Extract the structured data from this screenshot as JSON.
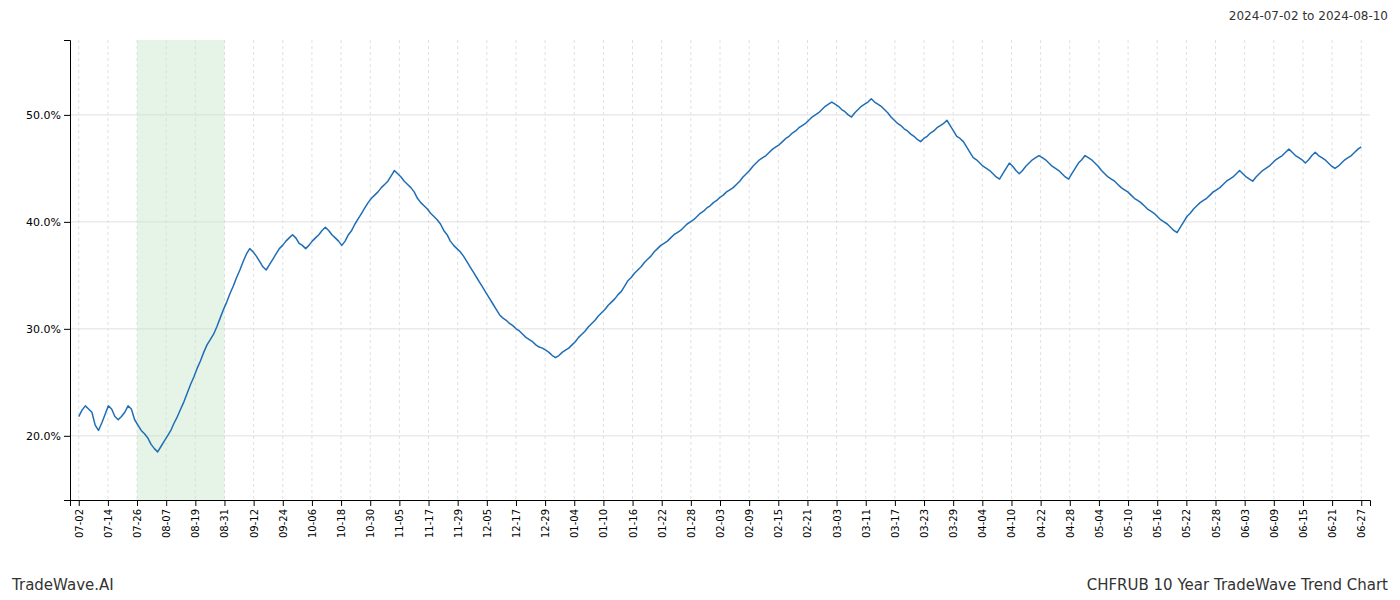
{
  "chart_data": {
    "type": "line",
    "title": "CHFRUB 10 Year TradeWave Trend Chart",
    "subtitle": "2024-07-02 to 2024-08-10",
    "annotations": [
      "TradeWave.AI"
    ],
    "color": "#1f6eb5",
    "grid": true,
    "shade_x": [
      2,
      5
    ],
    "shade_color": "#c8e6c9",
    "xlim": [
      -0.3,
      44.3
    ],
    "xticks": [
      {
        "value": 0,
        "label": "07-02"
      },
      {
        "value": 1,
        "label": "07-14"
      },
      {
        "value": 2,
        "label": "07-26"
      },
      {
        "value": 3,
        "label": "08-07"
      },
      {
        "value": 4,
        "label": "08-19"
      },
      {
        "value": 5,
        "label": "08-31"
      },
      {
        "value": 6,
        "label": "09-12"
      },
      {
        "value": 7,
        "label": "09-24"
      },
      {
        "value": 8,
        "label": "10-06"
      },
      {
        "value": 9,
        "label": "10-18"
      },
      {
        "value": 10,
        "label": "10-30"
      },
      {
        "value": 11,
        "label": "11-05"
      },
      {
        "value": 12,
        "label": "11-17"
      },
      {
        "value": 13,
        "label": "11-29"
      },
      {
        "value": 14,
        "label": "12-05"
      },
      {
        "value": 15,
        "label": "12-17"
      },
      {
        "value": 16,
        "label": "12-29"
      },
      {
        "value": 17,
        "label": "01-04"
      },
      {
        "value": 18,
        "label": "01-10"
      },
      {
        "value": 19,
        "label": "01-16"
      },
      {
        "value": 20,
        "label": "01-22"
      },
      {
        "value": 21,
        "label": "01-28"
      },
      {
        "value": 22,
        "label": "02-03"
      },
      {
        "value": 23,
        "label": "02-09"
      },
      {
        "value": 24,
        "label": "02-15"
      },
      {
        "value": 25,
        "label": "02-21"
      },
      {
        "value": 26,
        "label": "03-03"
      },
      {
        "value": 27,
        "label": "03-11"
      },
      {
        "value": 28,
        "label": "03-17"
      },
      {
        "value": 29,
        "label": "03-23"
      },
      {
        "value": 30,
        "label": "03-29"
      },
      {
        "value": 31,
        "label": "04-04"
      },
      {
        "value": 32,
        "label": "04-10"
      },
      {
        "value": 33,
        "label": "04-22"
      },
      {
        "value": 34,
        "label": "04-28"
      },
      {
        "value": 35,
        "label": "05-04"
      },
      {
        "value": 36,
        "label": "05-10"
      },
      {
        "value": 37,
        "label": "05-16"
      },
      {
        "value": 38,
        "label": "05-22"
      },
      {
        "value": 39,
        "label": "05-28"
      },
      {
        "value": 40,
        "label": "06-03"
      },
      {
        "value": 41,
        "label": "06-09"
      },
      {
        "value": 42,
        "label": "06-15"
      },
      {
        "value": 43,
        "label": "06-21"
      },
      {
        "value": 44,
        "label": "06-27"
      }
    ],
    "ylim": [
      0.14,
      0.57
    ],
    "yticks": [
      {
        "value": 0.2,
        "label": "20.0%"
      },
      {
        "value": 0.3,
        "label": "30.0%"
      },
      {
        "value": 0.4,
        "label": "40.0%"
      },
      {
        "value": 0.5,
        "label": "50.0%"
      }
    ],
    "x": [
      0,
      0.1128,
      0.2256,
      0.3385,
      0.4513,
      0.5641,
      0.6769,
      0.7897,
      0.9026,
      1.0154,
      1.1282,
      1.241,
      1.3538,
      1.4667,
      1.5795,
      1.6923,
      1.8051,
      1.9179,
      2.0308,
      2.1436,
      2.2564,
      2.3692,
      2.4821,
      2.5949,
      2.7077,
      2.8205,
      2.9333,
      3.0462,
      3.159,
      3.2718,
      3.3846,
      3.4974,
      3.6103,
      3.7231,
      3.8359,
      3.9487,
      4.0615,
      4.1744,
      4.2872,
      4.4,
      4.5128,
      4.6256,
      4.7385,
      4.8513,
      4.9641,
      5.0769,
      5.1897,
      5.3026,
      5.4154,
      5.5282,
      5.641,
      5.7538,
      5.8667,
      5.9795,
      6.0923,
      6.2051,
      6.3179,
      6.4308,
      6.5436,
      6.6564,
      6.7692,
      6.8821,
      6.9949,
      7.1077,
      7.2205,
      7.3333,
      7.4462,
      7.559,
      7.6718,
      7.7846,
      7.8974,
      8.0103,
      8.1231,
      8.2359,
      8.3487,
      8.4615,
      8.5744,
      8.6872,
      8.8,
      8.9128,
      9.0256,
      9.1385,
      9.2513,
      9.3641,
      9.4769,
      9.5897,
      9.7026,
      9.8154,
      9.9282,
      10.041,
      10.1538,
      10.2667,
      10.3795,
      10.4923,
      10.6051,
      10.7179,
      10.8308,
      10.9436,
      11.0564,
      11.1692,
      11.2821,
      11.3949,
      11.5077,
      11.6205,
      11.7333,
      11.8462,
      11.959,
      12.0718,
      12.1846,
      12.2974,
      12.4103,
      12.5231,
      12.6359,
      12.7487,
      12.8615,
      12.9744,
      13.0872,
      13.2,
      13.3128,
      13.4256,
      13.5385,
      13.6513,
      13.7641,
      13.8769,
      13.9897,
      14.1026,
      14.2154,
      14.3282,
      14.441,
      14.5538,
      14.6667,
      14.7795,
      14.8923,
      15.0051,
      15.1179,
      15.2308,
      15.3436,
      15.4564,
      15.5692,
      15.6821,
      15.7949,
      15.9077,
      16.0205,
      16.1333,
      16.2462,
      16.359,
      16.4718,
      16.5846,
      16.6974,
      16.8103,
      16.9231,
      17.0359,
      17.1487,
      17.2615,
      17.3744,
      17.4872,
      17.6,
      17.7128,
      17.8256,
      17.9385,
      18.0513,
      18.1641,
      18.2769,
      18.3897,
      18.5026,
      18.6154,
      18.7282,
      18.841,
      18.9538,
      19.0667,
      19.1795,
      19.2923,
      19.4051,
      19.5179,
      19.6308,
      19.7436,
      19.8564,
      19.9692,
      20.0821,
      20.1949,
      20.3077,
      20.4205,
      20.5333,
      20.6462,
      20.759,
      20.8718,
      20.9846,
      21.0974,
      21.2103,
      21.3231,
      21.4359,
      21.5487,
      21.6615,
      21.7744,
      21.8872,
      22,
      22.1128,
      22.2256,
      22.3385,
      22.4513,
      22.5641,
      22.6769,
      22.7897,
      22.9026,
      23.0154,
      23.1282,
      23.241,
      23.3538,
      23.4667,
      23.5795,
      23.6923,
      23.8051,
      23.9179,
      24.0308,
      24.1436,
      24.2564,
      24.3692,
      24.4821,
      24.5949,
      24.7077,
      24.8205,
      24.9333,
      25.0462,
      25.159,
      25.2718,
      25.3846,
      25.4974,
      25.6103,
      25.7231,
      25.8359,
      25.9487,
      26.0615,
      26.1744,
      26.2872,
      26.4,
      26.5128,
      26.6256,
      26.7385,
      26.8513,
      26.9641,
      27.0769,
      27.1897,
      27.3026,
      27.4154,
      27.5282,
      27.641,
      27.7538,
      27.8667,
      27.9795,
      28.0923,
      28.2051,
      28.3179,
      28.4308,
      28.5436,
      28.6564,
      28.7692,
      28.8821,
      28.9949,
      29.1077,
      29.2205,
      29.3333,
      29.4462,
      29.559,
      29.6718,
      29.7846,
      29.8974,
      30.0103,
      30.1231,
      30.2359,
      30.3487,
      30.4615,
      30.5744,
      30.6872,
      30.8,
      30.9128,
      31.0256,
      31.1385,
      31.2513,
      31.3641,
      31.4769,
      31.5897,
      31.7026,
      31.8154,
      31.9282,
      32.041,
      32.1538,
      32.2667,
      32.3795,
      32.4923,
      32.6051,
      32.7179,
      32.8308,
      32.9436,
      33.0564,
      33.1692,
      33.2821,
      33.3949,
      33.5077,
      33.6205,
      33.7333,
      33.8462,
      33.959,
      34.0718,
      34.1846,
      34.2974,
      34.4103,
      34.5231,
      34.6359,
      34.7487,
      34.8615,
      34.9744,
      35.0872,
      35.2,
      35.3128,
      35.4256,
      35.5385,
      35.6513,
      35.7641,
      35.8769,
      35.9897,
      36.1026,
      36.2154,
      36.3282,
      36.441,
      36.5538,
      36.6667,
      36.7795,
      36.8923,
      37.0051,
      37.1179,
      37.2308,
      37.3436,
      37.4564,
      37.5692,
      37.6821,
      37.7949,
      37.9077,
      38.0205,
      38.1333,
      38.2462,
      38.359,
      38.4718,
      38.5846,
      38.6974,
      38.8103,
      38.9231,
      39.0359,
      39.1487,
      39.2615,
      39.3744,
      39.4872,
      39.6,
      39.7128,
      39.8256,
      39.9385,
      40.0513,
      40.1641,
      40.2769,
      40.3897,
      40.5026,
      40.6154,
      40.7282,
      40.841,
      40.9538,
      41.0667,
      41.1795,
      41.2923,
      41.4051,
      41.5179,
      41.6308,
      41.7436,
      41.8564,
      41.9692,
      42.0821,
      42.1949,
      42.3077,
      42.4205,
      42.5333,
      42.6462,
      42.759,
      42.8718,
      42.9846,
      43.0974,
      43.2103,
      43.3231,
      43.4359,
      43.5487,
      43.6615,
      43.7744,
      43.8872,
      44
    ],
    "values": [
      0.218,
      0.224,
      0.228,
      0.225,
      0.222,
      0.21,
      0.205,
      0.212,
      0.22,
      0.228,
      0.225,
      0.218,
      0.215,
      0.218,
      0.222,
      0.228,
      0.225,
      0.215,
      0.21,
      0.205,
      0.202,
      0.198,
      0.192,
      0.188,
      0.185,
      0.19,
      0.195,
      0.2,
      0.205,
      0.212,
      0.218,
      0.225,
      0.232,
      0.24,
      0.248,
      0.255,
      0.263,
      0.27,
      0.278,
      0.285,
      0.29,
      0.295,
      0.302,
      0.31,
      0.318,
      0.325,
      0.333,
      0.34,
      0.348,
      0.355,
      0.363,
      0.37,
      0.375,
      0.372,
      0.368,
      0.363,
      0.358,
      0.355,
      0.36,
      0.365,
      0.37,
      0.375,
      0.378,
      0.382,
      0.385,
      0.388,
      0.385,
      0.38,
      0.378,
      0.375,
      0.378,
      0.382,
      0.385,
      0.388,
      0.392,
      0.395,
      0.392,
      0.388,
      0.385,
      0.382,
      0.378,
      0.382,
      0.388,
      0.392,
      0.398,
      0.403,
      0.408,
      0.413,
      0.418,
      0.422,
      0.425,
      0.428,
      0.432,
      0.435,
      0.438,
      0.443,
      0.448,
      0.445,
      0.442,
      0.438,
      0.435,
      0.432,
      0.428,
      0.422,
      0.418,
      0.415,
      0.412,
      0.408,
      0.405,
      0.402,
      0.398,
      0.392,
      0.388,
      0.382,
      0.378,
      0.375,
      0.372,
      0.368,
      0.363,
      0.358,
      0.353,
      0.348,
      0.343,
      0.338,
      0.333,
      0.328,
      0.323,
      0.318,
      0.313,
      0.31,
      0.308,
      0.305,
      0.303,
      0.3,
      0.298,
      0.295,
      0.292,
      0.29,
      0.288,
      0.285,
      0.283,
      0.282,
      0.28,
      0.278,
      0.275,
      0.273,
      0.275,
      0.278,
      0.28,
      0.282,
      0.285,
      0.288,
      0.292,
      0.295,
      0.298,
      0.302,
      0.305,
      0.308,
      0.312,
      0.315,
      0.318,
      0.322,
      0.325,
      0.328,
      0.332,
      0.335,
      0.34,
      0.345,
      0.348,
      0.352,
      0.355,
      0.358,
      0.362,
      0.365,
      0.368,
      0.372,
      0.375,
      0.378,
      0.38,
      0.382,
      0.385,
      0.388,
      0.39,
      0.392,
      0.395,
      0.398,
      0.4,
      0.402,
      0.405,
      0.408,
      0.41,
      0.413,
      0.415,
      0.418,
      0.42,
      0.423,
      0.425,
      0.428,
      0.43,
      0.432,
      0.435,
      0.438,
      0.442,
      0.445,
      0.448,
      0.452,
      0.455,
      0.458,
      0.46,
      0.462,
      0.465,
      0.468,
      0.47,
      0.472,
      0.475,
      0.478,
      0.48,
      0.483,
      0.485,
      0.488,
      0.49,
      0.492,
      0.495,
      0.498,
      0.5,
      0.502,
      0.505,
      0.508,
      0.51,
      0.512,
      0.51,
      0.508,
      0.505,
      0.503,
      0.5,
      0.498,
      0.502,
      0.505,
      0.508,
      0.51,
      0.512,
      0.515,
      0.512,
      0.51,
      0.508,
      0.505,
      0.502,
      0.498,
      0.495,
      0.492,
      0.49,
      0.487,
      0.485,
      0.482,
      0.48,
      0.477,
      0.475,
      0.478,
      0.48,
      0.483,
      0.485,
      0.488,
      0.49,
      0.492,
      0.495,
      0.49,
      0.485,
      0.48,
      0.478,
      0.475,
      0.47,
      0.465,
      0.46,
      0.458,
      0.455,
      0.452,
      0.45,
      0.448,
      0.445,
      0.442,
      0.44,
      0.445,
      0.45,
      0.455,
      0.452,
      0.448,
      0.445,
      0.448,
      0.452,
      0.455,
      0.458,
      0.46,
      0.462,
      0.46,
      0.458,
      0.455,
      0.452,
      0.45,
      0.448,
      0.445,
      0.442,
      0.44,
      0.445,
      0.45,
      0.455,
      0.458,
      0.462,
      0.46,
      0.458,
      0.455,
      0.452,
      0.448,
      0.445,
      0.442,
      0.44,
      0.438,
      0.435,
      0.432,
      0.43,
      0.428,
      0.425,
      0.422,
      0.42,
      0.418,
      0.415,
      0.412,
      0.41,
      0.408,
      0.405,
      0.402,
      0.4,
      0.398,
      0.395,
      0.392,
      0.39,
      0.395,
      0.4,
      0.405,
      0.408,
      0.412,
      0.415,
      0.418,
      0.42,
      0.422,
      0.425,
      0.428,
      0.43,
      0.432,
      0.435,
      0.438,
      0.44,
      0.442,
      0.445,
      0.448,
      0.445,
      0.442,
      0.44,
      0.438,
      0.442,
      0.445,
      0.448,
      0.45,
      0.452,
      0.455,
      0.458,
      0.46,
      0.462,
      0.465,
      0.468,
      0.465,
      0.462,
      0.46,
      0.458,
      0.455,
      0.458,
      0.462,
      0.465,
      0.462,
      0.46,
      0.458,
      0.455,
      0.452,
      0.45,
      0.452,
      0.455,
      0.458,
      0.46,
      0.462,
      0.465,
      0.468,
      0.47
    ]
  }
}
